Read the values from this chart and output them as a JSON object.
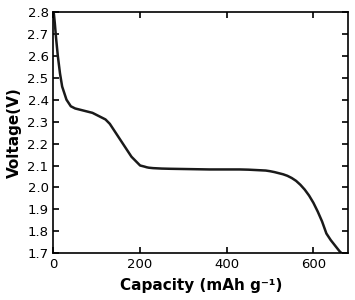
{
  "title": "",
  "xlabel": "Capacity (mAh g⁻¹)",
  "ylabel": "Voltage(V)",
  "xlim": [
    0,
    680
  ],
  "ylim": [
    1.7,
    2.8
  ],
  "xticks": [
    0,
    200,
    400,
    600
  ],
  "yticks": [
    1.7,
    1.8,
    1.9,
    2.0,
    2.1,
    2.2,
    2.3,
    2.4,
    2.5,
    2.6,
    2.7,
    2.8
  ],
  "line_color": "#1a1a1a",
  "line_width": 1.8,
  "background_color": "#ffffff",
  "curve_x": [
    0,
    1,
    3,
    6,
    10,
    15,
    20,
    25,
    30,
    40,
    50,
    60,
    70,
    80,
    90,
    100,
    110,
    120,
    130,
    140,
    150,
    160,
    170,
    180,
    190,
    200,
    210,
    215,
    220,
    230,
    240,
    250,
    270,
    300,
    330,
    360,
    400,
    430,
    450,
    460,
    470,
    480,
    490,
    500,
    510,
    520,
    530,
    540,
    550,
    560,
    570,
    580,
    590,
    600,
    610,
    620,
    630,
    640,
    650,
    660,
    665,
    668
  ],
  "curve_y": [
    2.8,
    2.79,
    2.75,
    2.68,
    2.6,
    2.52,
    2.46,
    2.43,
    2.4,
    2.37,
    2.36,
    2.355,
    2.35,
    2.345,
    2.34,
    2.33,
    2.32,
    2.31,
    2.29,
    2.26,
    2.23,
    2.2,
    2.17,
    2.14,
    2.12,
    2.1,
    2.095,
    2.092,
    2.09,
    2.088,
    2.087,
    2.086,
    2.085,
    2.084,
    2.083,
    2.082,
    2.082,
    2.082,
    2.081,
    2.08,
    2.079,
    2.078,
    2.077,
    2.074,
    2.07,
    2.065,
    2.06,
    2.053,
    2.043,
    2.03,
    2.012,
    1.99,
    1.963,
    1.93,
    1.89,
    1.845,
    1.79,
    1.76,
    1.735,
    1.71,
    1.7,
    1.7
  ]
}
